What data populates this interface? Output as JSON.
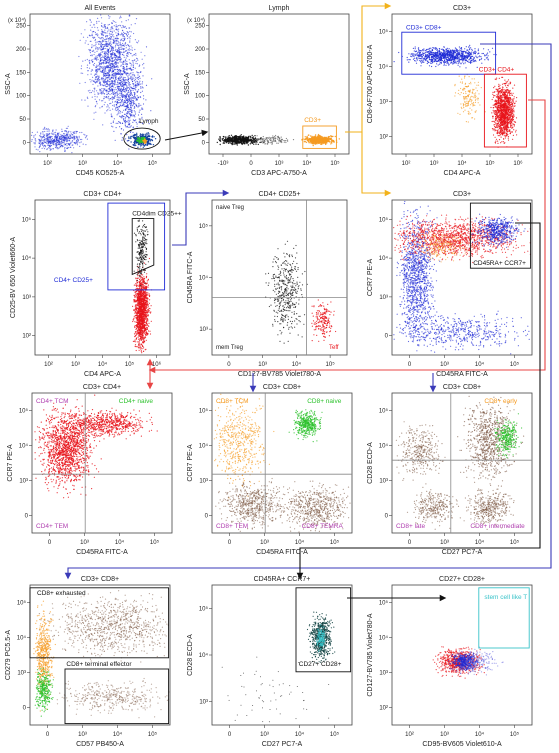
{
  "colors": {
    "blue": "#1f2bd6",
    "red": "#e8141b",
    "orange": "#f59a20",
    "black": "#111111",
    "green": "#2dc22d",
    "brown": "#7a5540",
    "purple": "#b040b0",
    "cyan": "#39c3c9",
    "gold_arrow": "#f2b21a",
    "navy_arrow": "#3a3ab8",
    "red_arrow": "#e84545"
  },
  "chart_data": [
    {
      "type": "scatter",
      "title": "All Events",
      "xlabel": "CD45 KO525-A",
      "ylabel": "SSC-A",
      "y_multiplier": "(x 10⁴)",
      "xticks": [
        "10²",
        "10³",
        "10⁴",
        "10⁵"
      ],
      "yticks": [
        "0",
        "50",
        "100",
        "150",
        "200",
        "250"
      ],
      "gates": [
        {
          "label": "Lymph",
          "color": "#111111"
        }
      ]
    },
    {
      "type": "scatter",
      "title": "Lymph",
      "xlabel": "CD3 APC-A750-A",
      "ylabel": "SSC-A",
      "y_multiplier": "(x 10⁴)",
      "xticks": [
        "-10³",
        "0",
        "10³",
        "10⁴",
        "10⁵"
      ],
      "yticks": [
        "0",
        "50",
        "100",
        "150",
        "200",
        "250"
      ],
      "gates": [
        {
          "label": "CD3+",
          "color": "#f59a20"
        }
      ]
    },
    {
      "type": "scatter",
      "title": "CD3+",
      "xlabel": "CD4 APC-A",
      "ylabel": "CD8-AF700 APC-A700-A",
      "xticks": [
        "10²",
        "10³",
        "10⁴",
        "10⁵",
        "10⁶"
      ],
      "yticks": [
        "10²",
        "10³",
        "10⁴",
        "10⁵"
      ],
      "gates": [
        {
          "label": "CD3+ CD8+",
          "color": "#1f2bd6"
        },
        {
          "label": "CD3+ CD4+",
          "color": "#e8141b"
        }
      ]
    },
    {
      "type": "scatter",
      "title": "CD3+ CD4+",
      "xlabel": "CD4 APC-A",
      "ylabel": "CD25-BV 650 Violet660-A",
      "xticks": [
        "10²",
        "10³",
        "10⁴",
        "10⁵",
        "10⁶"
      ],
      "yticks": [
        "10²",
        "10³",
        "10⁴",
        "10⁵"
      ],
      "gates": [
        {
          "label": "CD4dim CD25++",
          "color": "#111111"
        },
        {
          "label": "CD4+ CD25+",
          "color": "#1f2bd6"
        }
      ]
    },
    {
      "type": "scatter",
      "title": "CD4+ CD25+",
      "xlabel": "CD127-BV785 Violet780-A",
      "ylabel": "CD45RA FITC-A",
      "xticks": [
        "0",
        "10³",
        "10⁴",
        "10⁵"
      ],
      "yticks": [
        "10³",
        "10⁴",
        "10⁵"
      ],
      "quadrants": [
        "naive Treg",
        "mem Treg",
        "Teff"
      ]
    },
    {
      "type": "scatter",
      "title": "CD3+",
      "xlabel": "CD45RA FITC-A",
      "ylabel": "CCR7 PE-A",
      "xticks": [
        "0",
        "10³",
        "10⁴",
        "10⁵"
      ],
      "yticks": [
        "0",
        "10³",
        "10⁴",
        "10⁵"
      ],
      "gates": [
        {
          "label": "CD45RA+ CCR7+",
          "color": "#111111"
        }
      ]
    },
    {
      "type": "scatter",
      "title": "CD3+ CD4+",
      "xlabel": "CD45RA FITC-A",
      "ylabel": "CCR7 PE-A",
      "xticks": [
        "0",
        "10³",
        "10⁴",
        "10⁵"
      ],
      "yticks": [
        "0",
        "10³",
        "10⁴",
        "10⁵"
      ],
      "quadrants": [
        "CD4+ TCM",
        "CD4+ naive",
        "CD4+ TEM"
      ]
    },
    {
      "type": "scatter",
      "title": "CD3+ CD8+",
      "xlabel": "CD45RA FITC-A",
      "ylabel": "CCR7 PE-A",
      "xticks": [
        "0",
        "10³",
        "10⁴",
        "10⁵"
      ],
      "yticks": [
        "0",
        "10³",
        "10⁴",
        "10⁵"
      ],
      "quadrants": [
        "CD8+ TCM",
        "CD8+ naive",
        "CD8+ TEM",
        "CD8+ TEMRA"
      ]
    },
    {
      "type": "scatter",
      "title": "CD3+ CD8+",
      "xlabel": "CD27 PC7-A",
      "ylabel": "CD28 ECD-A",
      "xticks": [
        "0",
        "10³",
        "10⁴",
        "10⁵"
      ],
      "yticks": [
        "0",
        "10³",
        "10⁴",
        "10⁵"
      ],
      "quadrants": [
        "CD8+ early",
        "CD8+ late",
        "CD8+ intermediate"
      ]
    },
    {
      "type": "scatter",
      "title": "CD3+ CD8+",
      "xlabel": "CD57 PB450-A",
      "ylabel": "CD279 PC5.5-A",
      "xticks": [
        "0",
        "10³",
        "10⁴",
        "10⁵"
      ],
      "yticks": [
        "0",
        "10³",
        "10⁴",
        "10⁵"
      ],
      "gates": [
        {
          "label": "CD8+ exhausted",
          "color": "#111111"
        },
        {
          "label": "CD8+ terminal effector",
          "color": "#111111"
        }
      ]
    },
    {
      "type": "scatter",
      "title": "CD45RA+ CCR7+",
      "xlabel": "CD27 PC7-A",
      "ylabel": "CD28 ECD-A",
      "xticks": [
        "0",
        "10³",
        "10⁴",
        "10⁵"
      ],
      "yticks": [
        "10³",
        "10⁴",
        "10⁵"
      ],
      "gates": [
        {
          "label": "CD27+ CD28+",
          "color": "#111111"
        }
      ]
    },
    {
      "type": "scatter",
      "title": "CD27+ CD28+",
      "xlabel": "CD95-BV605 Violet610-A",
      "ylabel": "CD127-BV785 Violet780-A",
      "xticks": [
        "10²",
        "10³",
        "10⁴",
        "10⁵"
      ],
      "yticks": [
        "10²",
        "10³",
        "10⁴",
        "10⁵"
      ],
      "gates": [
        {
          "label": "stem cell like T",
          "color": "#39c3c9"
        }
      ]
    }
  ]
}
